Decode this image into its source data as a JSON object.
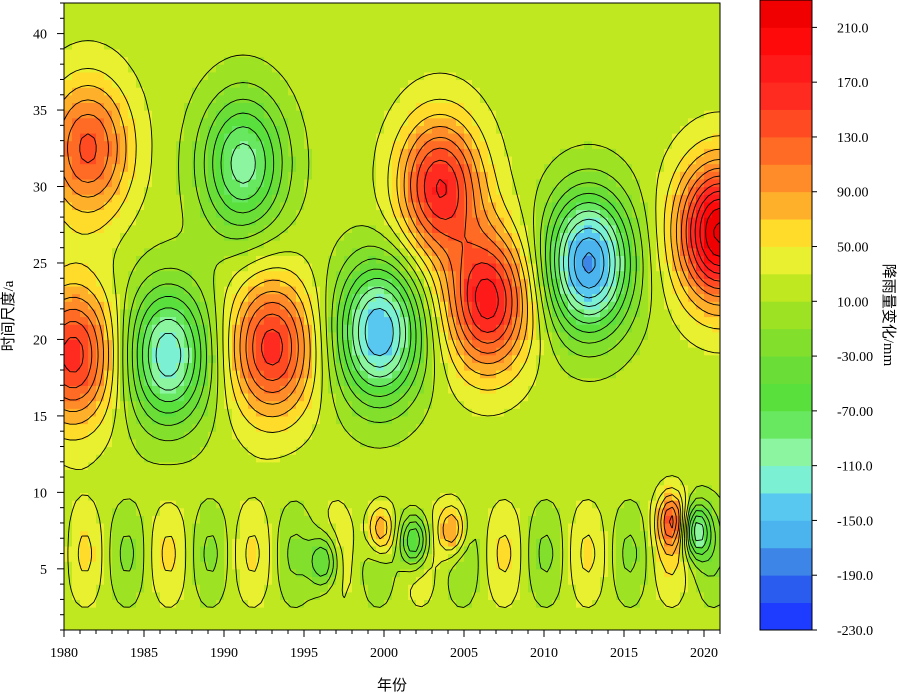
{
  "chart_data": {
    "type": "heatmap",
    "subtype": "filled-contour (wavelet real part)",
    "title": "",
    "xlabel": "年份",
    "ylabel": "时间尺度/a",
    "colorbar_label": "降雨量变化/mm",
    "xlim": [
      1980,
      2021
    ],
    "ylim": [
      1,
      42
    ],
    "x_ticks": [
      1980,
      1985,
      1990,
      1995,
      2000,
      2005,
      2010,
      2015,
      2020
    ],
    "x_tick_labels": [
      "1980",
      "1985",
      "1990",
      "1995",
      "2000",
      "2005",
      "2010",
      "2015",
      "2020"
    ],
    "y_ticks": [
      5,
      10,
      15,
      20,
      25,
      30,
      35,
      40
    ],
    "y_tick_labels": [
      "5",
      "10",
      "15",
      "20",
      "25",
      "30",
      "35",
      "40"
    ],
    "contour_levels": [
      -230,
      -210,
      -190,
      -170,
      -150,
      -130,
      -110,
      -90,
      -70,
      -50,
      -30,
      -10,
      10,
      30,
      50,
      70,
      90,
      110,
      130,
      150,
      170,
      190,
      210,
      230
    ],
    "colorbar_tick_values": [
      210,
      170,
      130,
      90,
      50,
      10,
      -30,
      -70,
      -110,
      -150,
      -190,
      -230
    ],
    "colorbar_tick_labels": [
      "210.0",
      "170.0",
      "130.0",
      "90.00",
      "50.00",
      "10.00",
      "-30.00",
      "-70.00",
      "-110.0",
      "-150.0",
      "-190.0",
      "-230.0"
    ],
    "colors": [
      "#1e3cff",
      "#2a5cf0",
      "#3d86e8",
      "#4bb4ee",
      "#58c8f0",
      "#7cf0d2",
      "#8cf5a0",
      "#68e860",
      "#5ae03c",
      "#6ade36",
      "#82e02c",
      "#9ee224",
      "#bfe820",
      "#e8f030",
      "#ffdc2a",
      "#ffb02a",
      "#ff8c28",
      "#ff6a24",
      "#ff4a22",
      "#ff2a20",
      "#ff1a1a",
      "#ff0a0a",
      "#f00000"
    ],
    "line_color": "#000000",
    "features": [
      {
        "label": "positive center",
        "x": 1980.6,
        "y": 19,
        "value": 140
      },
      {
        "label": "positive center",
        "x": 1981.5,
        "y": 32.5,
        "value": 115
      },
      {
        "label": "negative center",
        "x": 1986.5,
        "y": 19,
        "value": -145
      },
      {
        "label": "negative center",
        "x": 1991.2,
        "y": 31.5,
        "value": -120
      },
      {
        "label": "positive center",
        "x": 1993,
        "y": 19.5,
        "value": 140
      },
      {
        "label": "negative center",
        "x": 1999.7,
        "y": 20.5,
        "value": -170
      },
      {
        "label": "positive center",
        "x": 2003.5,
        "y": 30,
        "value": 150
      },
      {
        "label": "positive center",
        "x": 2006.5,
        "y": 22.5,
        "value": 160
      },
      {
        "label": "negative center",
        "x": 2012.8,
        "y": 25,
        "value": -195
      },
      {
        "label": "positive center",
        "x": 2021,
        "y": 27,
        "value": 215
      },
      {
        "label": "small positive cell",
        "x": 1999.8,
        "y": 7.5,
        "value": 90
      },
      {
        "label": "small positive cell",
        "x": 2004.3,
        "y": 7.5,
        "value": 90
      },
      {
        "label": "small negative cell",
        "x": 2001.9,
        "y": 6.8,
        "value": -120
      },
      {
        "label": "small negative cell",
        "x": 2019.5,
        "y": 7.5,
        "value": -120
      },
      {
        "label": "small positive cell",
        "x": 2018,
        "y": 8.2,
        "value": 100
      },
      {
        "label": "small negative cell",
        "x": 1996.3,
        "y": 5.5,
        "value": -90
      }
    ],
    "grid": false,
    "legend": "colorbar-right"
  }
}
